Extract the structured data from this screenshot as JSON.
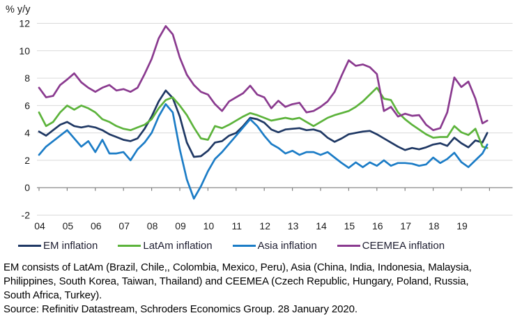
{
  "chart_data": {
    "type": "line",
    "title": "",
    "ylabel": "% y/y",
    "xlabel": "",
    "grid": true,
    "legend_position": "bottom",
    "ylim": [
      -2,
      12
    ],
    "xlim": [
      2004,
      2020.8
    ],
    "y_ticks": [
      12,
      10,
      8,
      6,
      4,
      2,
      0,
      -2
    ],
    "x_tick_labels": [
      "04",
      "05",
      "06",
      "07",
      "08",
      "09",
      "10",
      "11",
      "12",
      "13",
      "14",
      "15",
      "16",
      "17",
      "18",
      "19"
    ],
    "x_start": 2004,
    "x_step": 0.25,
    "x_last": 2019.92,
    "colors": {
      "grid": "#D9D9D9",
      "axis": "#7F7F7F",
      "text": "#1A1A1A"
    },
    "series": [
      {
        "name": "EM",
        "legend_label": "EM inflation",
        "color": "#1F3864",
        "values": [
          4.1,
          3.8,
          4.2,
          4.6,
          4.8,
          4.5,
          4.4,
          4.5,
          4.4,
          4.2,
          3.9,
          3.7,
          3.5,
          3.4,
          3.6,
          4.3,
          5.2,
          6.3,
          7.1,
          6.55,
          5.2,
          3.3,
          2.25,
          2.3,
          2.7,
          3.3,
          3.4,
          3.8,
          4.0,
          4.5,
          5.1,
          5.0,
          4.75,
          4.25,
          4.05,
          4.25,
          4.3,
          4.35,
          4.2,
          4.25,
          4.1,
          3.65,
          3.35,
          3.6,
          3.9,
          4.0,
          4.1,
          4.15,
          3.9,
          3.6,
          3.3,
          3.0,
          2.75,
          2.9,
          2.8,
          2.95,
          3.15,
          3.25,
          3.05,
          3.65,
          3.25,
          2.95,
          3.45,
          3.3,
          4.0
        ]
      },
      {
        "name": "LatAm",
        "legend_label": "LatAm inflation",
        "color": "#5CB33B",
        "values": [
          5.5,
          4.5,
          4.8,
          5.5,
          6.0,
          5.7,
          6.0,
          5.8,
          5.5,
          5.0,
          4.8,
          4.5,
          4.3,
          4.2,
          4.4,
          4.6,
          5.0,
          5.8,
          6.4,
          6.6,
          6.0,
          5.3,
          4.4,
          3.6,
          3.5,
          4.5,
          4.35,
          4.6,
          4.9,
          5.2,
          5.45,
          5.3,
          5.1,
          4.9,
          5.0,
          5.1,
          5.0,
          5.1,
          4.8,
          4.5,
          4.8,
          5.1,
          5.3,
          5.45,
          5.6,
          5.9,
          6.3,
          6.8,
          7.3,
          6.5,
          6.4,
          5.5,
          5.0,
          4.6,
          4.25,
          3.9,
          3.65,
          3.7,
          3.7,
          4.5,
          4.05,
          3.85,
          4.3,
          3.0,
          2.9
        ]
      },
      {
        "name": "Asia",
        "legend_label": "Asia inflation",
        "color": "#1B7CC6",
        "values": [
          2.4,
          3.0,
          3.4,
          3.8,
          4.2,
          3.6,
          3.0,
          3.4,
          2.6,
          3.5,
          2.5,
          2.5,
          2.6,
          2.0,
          2.8,
          3.3,
          4.0,
          5.2,
          6.1,
          5.5,
          2.8,
          0.6,
          -0.8,
          0.1,
          1.2,
          2.1,
          2.6,
          3.2,
          3.8,
          4.4,
          5.0,
          4.5,
          3.8,
          3.2,
          2.9,
          2.5,
          2.7,
          2.4,
          2.6,
          2.6,
          2.4,
          2.6,
          2.2,
          1.8,
          1.45,
          1.85,
          1.5,
          1.85,
          1.6,
          2.0,
          1.6,
          1.8,
          1.8,
          1.75,
          1.6,
          1.7,
          2.2,
          1.8,
          2.1,
          2.55,
          1.87,
          1.5,
          2.0,
          2.5,
          3.15
        ]
      },
      {
        "name": "CEEMEA",
        "legend_label": "CEEMEA inflation",
        "color": "#8A3A8F",
        "values": [
          7.3,
          6.6,
          6.7,
          7.5,
          7.9,
          8.35,
          7.7,
          7.3,
          7.0,
          7.3,
          7.5,
          7.1,
          7.2,
          7.0,
          7.3,
          8.3,
          9.4,
          10.9,
          11.8,
          11.2,
          9.5,
          8.25,
          7.5,
          7.0,
          6.8,
          6.1,
          5.6,
          6.3,
          6.6,
          6.9,
          7.45,
          6.8,
          6.6,
          5.8,
          6.35,
          5.9,
          6.1,
          6.2,
          5.5,
          5.6,
          5.9,
          6.3,
          7.0,
          8.2,
          9.3,
          8.9,
          9.0,
          8.8,
          8.3,
          5.6,
          5.9,
          5.2,
          5.4,
          5.25,
          5.3,
          4.6,
          4.2,
          4.35,
          5.5,
          8.05,
          7.35,
          7.75,
          6.5,
          4.7,
          4.9
        ]
      }
    ]
  },
  "footnote": {
    "lines": [
      "EM consists of LatAm (Brazil, Chile,, Colombia, Mexico, Peru), Asia (China, India, Indonesia, Malaysia,",
      "Philippines, South Korea, Taiwan, Thailand) and CEEMEA (Czech Republic, Hungary, Poland, Russia,",
      "South Africa, Turkey).",
      "Source: Refinitiv Datastream, Schroders Economics Group. 28 January 2020."
    ]
  }
}
